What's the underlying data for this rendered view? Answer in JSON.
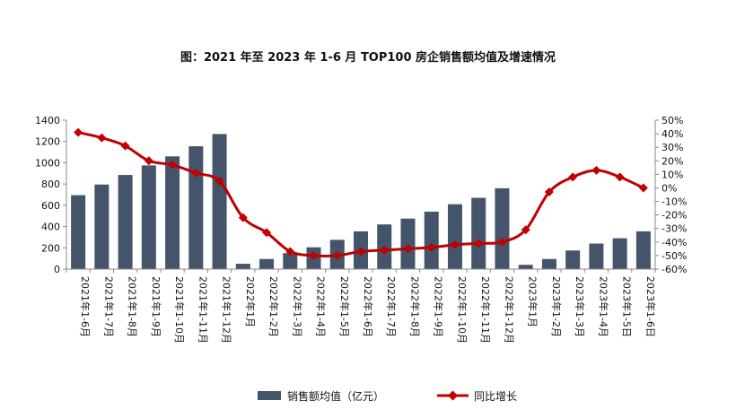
{
  "chart_data": {
    "type": "bar",
    "title": "图：2021 年至 2023 年 1-6 月 TOP100 房企销售额均值及增速情况",
    "categories": [
      "2021年1-6月",
      "2021年1-7月",
      "2021年1-8月",
      "2021年1-9月",
      "2021年1-10月",
      "2021年1-11月",
      "2021年1-12月",
      "2022年1月",
      "2022年1-2月",
      "2022年1-3月",
      "2022年1-4月",
      "2022年1-5月",
      "2022年1-6月",
      "2022年1-7月",
      "2022年1-8月",
      "2022年1-9月",
      "2022年1-10月",
      "2022年1-11月",
      "2022年1-12月",
      "2023年1月",
      "2023年1-2月",
      "2023年1-3月",
      "2023年1-4月",
      "2023年1-5日",
      "2023年1-6日"
    ],
    "series": [
      {
        "name": "销售额均值（亿元）",
        "type": "bar",
        "axis": "left",
        "color": "#44546a",
        "values": [
          695,
          795,
          885,
          975,
          1060,
          1155,
          1270,
          50,
          95,
          150,
          205,
          275,
          355,
          420,
          475,
          540,
          610,
          670,
          760,
          40,
          95,
          175,
          240,
          290,
          355
        ]
      },
      {
        "name": "同比增长",
        "type": "line",
        "axis": "right",
        "color": "#c00000",
        "values": [
          41,
          37,
          31,
          20,
          17,
          11,
          5,
          -22,
          -33,
          -47,
          -50,
          -50,
          -47,
          -46,
          -45,
          -44,
          -42,
          -41,
          -40,
          -31,
          -3,
          8,
          13,
          8,
          0
        ]
      }
    ],
    "y_left": {
      "lim": [
        0,
        1400
      ],
      "ticks": [
        "0",
        "200",
        "400",
        "600",
        "800",
        "1000",
        "1200",
        "1400"
      ]
    },
    "y_right": {
      "lim": [
        -60,
        50
      ],
      "ticks": [
        "-60%",
        "-50%",
        "-40%",
        "-30%",
        "-20%",
        "-10%",
        "0%",
        "10%",
        "20%",
        "30%",
        "40%",
        "50%"
      ]
    },
    "grid": false,
    "legend": "bottom"
  }
}
